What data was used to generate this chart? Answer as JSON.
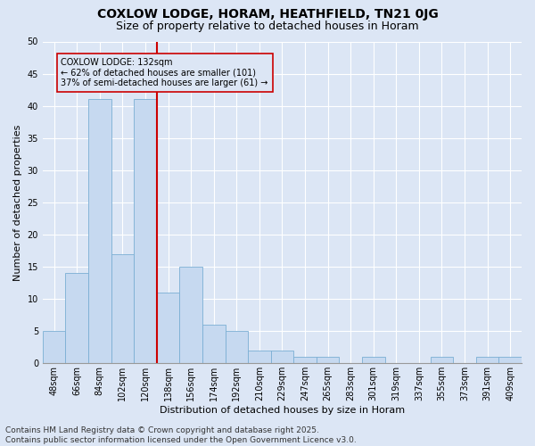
{
  "title1": "COXLOW LODGE, HORAM, HEATHFIELD, TN21 0JG",
  "title2": "Size of property relative to detached houses in Horam",
  "xlabel": "Distribution of detached houses by size in Horam",
  "ylabel": "Number of detached properties",
  "categories": [
    "48sqm",
    "66sqm",
    "84sqm",
    "102sqm",
    "120sqm",
    "138sqm",
    "156sqm",
    "174sqm",
    "192sqm",
    "210sqm",
    "229sqm",
    "247sqm",
    "265sqm",
    "283sqm",
    "301sqm",
    "319sqm",
    "337sqm",
    "355sqm",
    "373sqm",
    "391sqm",
    "409sqm"
  ],
  "values": [
    5,
    14,
    41,
    17,
    41,
    11,
    15,
    6,
    5,
    2,
    2,
    1,
    1,
    0,
    1,
    0,
    0,
    1,
    0,
    1,
    1
  ],
  "bar_color": "#c6d9f0",
  "bar_edge_color": "#7bafd4",
  "vline_color": "#cc0000",
  "annotation_text": "COXLOW LODGE: 132sqm\n← 62% of detached houses are smaller (101)\n37% of semi-detached houses are larger (61) →",
  "annotation_box_color": "#cc0000",
  "ylim": [
    0,
    50
  ],
  "yticks": [
    0,
    5,
    10,
    15,
    20,
    25,
    30,
    35,
    40,
    45,
    50
  ],
  "background_color": "#dce6f5",
  "grid_color": "#ffffff",
  "footer": "Contains HM Land Registry data © Crown copyright and database right 2025.\nContains public sector information licensed under the Open Government Licence v3.0.",
  "title_fontsize": 10,
  "subtitle_fontsize": 9,
  "axis_label_fontsize": 8,
  "tick_fontsize": 7,
  "footer_fontsize": 6.5
}
